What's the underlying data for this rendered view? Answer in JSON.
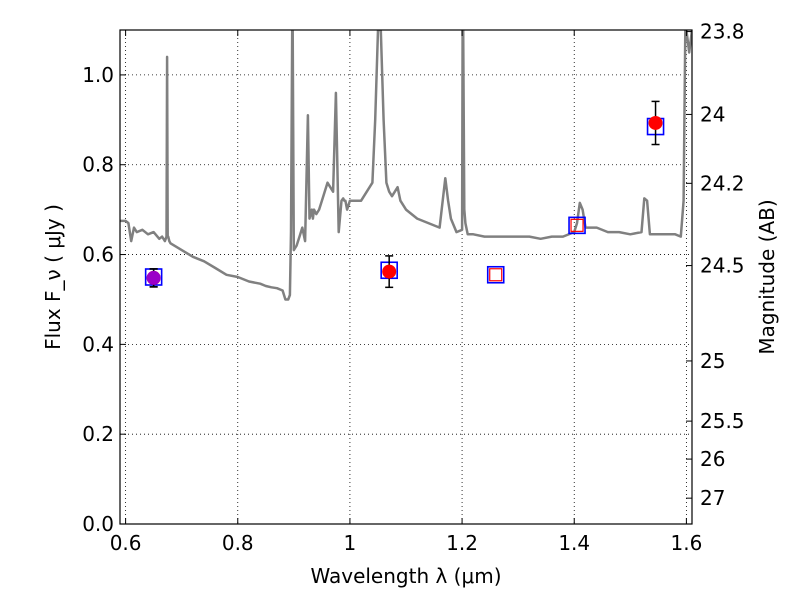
{
  "chart_data": {
    "type": "line",
    "xlabel": "Wavelength  λ (μm)",
    "ylabel": "Flux  F_ν  ( μJy )",
    "y2label": "Magnitude (AB)",
    "xlim": [
      0.59,
      1.61
    ],
    "ylim": [
      0.0,
      1.1
    ],
    "grid": true,
    "x_ticks": [
      {
        "value": 0.6,
        "label": "0.6"
      },
      {
        "value": 0.8,
        "label": "0.8"
      },
      {
        "value": 1.0,
        "label": "1"
      },
      {
        "value": 1.2,
        "label": "1.2"
      },
      {
        "value": 1.4,
        "label": "1.4"
      },
      {
        "value": 1.6,
        "label": "1.6"
      }
    ],
    "y_ticks": [
      {
        "value": 0.0,
        "label": "0.0"
      },
      {
        "value": 0.2,
        "label": "0.2"
      },
      {
        "value": 0.4,
        "label": "0.4"
      },
      {
        "value": 0.6,
        "label": "0.6"
      },
      {
        "value": 0.8,
        "label": "0.8"
      },
      {
        "value": 1.0,
        "label": "1.0"
      }
    ],
    "y2_ticks": [
      {
        "value": 23.8,
        "label": "23.8"
      },
      {
        "value": 24.0,
        "label": "24"
      },
      {
        "value": 24.2,
        "label": "24.2"
      },
      {
        "value": 24.5,
        "label": "24.5"
      },
      {
        "value": 25.0,
        "label": "25"
      },
      {
        "value": 25.5,
        "label": "25.5"
      },
      {
        "value": 26.0,
        "label": "26"
      },
      {
        "value": 27.0,
        "label": "27"
      }
    ],
    "series": [
      {
        "kind": "spectrum",
        "color": "#808080",
        "x": [
          0.59,
          0.6,
          0.605,
          0.61,
          0.615,
          0.62,
          0.63,
          0.64,
          0.65,
          0.66,
          0.665,
          0.67,
          0.673,
          0.674,
          0.675,
          0.676,
          0.678,
          0.68,
          0.7,
          0.72,
          0.74,
          0.76,
          0.78,
          0.8,
          0.82,
          0.84,
          0.85,
          0.86,
          0.87,
          0.88,
          0.885,
          0.89,
          0.893,
          0.895,
          0.897,
          0.898,
          0.9,
          0.905,
          0.91,
          0.915,
          0.92,
          0.925,
          0.928,
          0.932,
          0.934,
          0.936,
          0.94,
          0.945,
          0.95,
          0.955,
          0.96,
          0.965,
          0.97,
          0.975,
          0.98,
          0.985,
          0.988,
          0.99,
          0.992,
          0.995,
          1.0,
          1.02,
          1.04,
          1.045,
          1.05,
          1.055,
          1.06,
          1.065,
          1.07,
          1.075,
          1.08,
          1.085,
          1.09,
          1.1,
          1.12,
          1.14,
          1.16,
          1.17,
          1.175,
          1.18,
          1.19,
          1.2,
          1.201,
          1.202,
          1.204,
          1.206,
          1.21,
          1.22,
          1.24,
          1.26,
          1.28,
          1.3,
          1.32,
          1.34,
          1.36,
          1.38,
          1.4,
          1.405,
          1.41,
          1.415,
          1.42,
          1.44,
          1.46,
          1.48,
          1.5,
          1.52,
          1.525,
          1.53,
          1.535,
          1.54,
          1.56,
          1.58,
          1.59,
          1.595,
          1.598,
          1.6,
          1.605,
          1.61
        ],
        "y": [
          0.675,
          0.675,
          0.67,
          0.63,
          0.66,
          0.65,
          0.655,
          0.645,
          0.65,
          0.635,
          0.64,
          0.63,
          0.64,
          1.04,
          0.64,
          0.64,
          0.63,
          0.625,
          0.61,
          0.595,
          0.585,
          0.57,
          0.555,
          0.55,
          0.54,
          0.535,
          0.53,
          0.527,
          0.525,
          0.52,
          0.5,
          0.5,
          0.51,
          0.65,
          1.1,
          1.1,
          0.61,
          0.62,
          0.64,
          0.66,
          0.63,
          0.91,
          0.68,
          0.7,
          0.68,
          0.7,
          0.69,
          0.7,
          0.72,
          0.74,
          0.76,
          0.75,
          0.74,
          0.96,
          0.65,
          0.72,
          0.725,
          0.72,
          0.72,
          0.7,
          0.72,
          0.72,
          0.76,
          0.9,
          1.1,
          1.1,
          0.9,
          0.76,
          0.74,
          0.73,
          0.74,
          0.75,
          0.72,
          0.7,
          0.68,
          0.67,
          0.66,
          0.77,
          0.72,
          0.68,
          0.65,
          0.655,
          1.1,
          1.1,
          0.7,
          0.67,
          0.645,
          0.645,
          0.64,
          0.64,
          0.64,
          0.64,
          0.64,
          0.635,
          0.64,
          0.64,
          0.65,
          0.67,
          0.715,
          0.7,
          0.66,
          0.66,
          0.65,
          0.65,
          0.645,
          0.65,
          0.725,
          0.72,
          0.645,
          0.645,
          0.645,
          0.645,
          0.64,
          0.72,
          1.1,
          1.1,
          1.05,
          1.1
        ]
      },
      {
        "kind": "model",
        "marker": "square",
        "color": "#0000ff",
        "x": [
          0.65,
          1.07,
          1.26,
          1.405,
          1.545
        ],
        "y": [
          0.55,
          0.565,
          0.555,
          0.665,
          0.885
        ]
      },
      {
        "kind": "predicted",
        "marker": "square",
        "color": "#ff0000",
        "x": [
          1.26,
          1.405
        ],
        "y": [
          0.555,
          0.665
        ]
      },
      {
        "kind": "observed",
        "marker": "circle",
        "color": "#ff0000",
        "x": [
          0.65,
          1.07,
          1.545
        ],
        "y": [
          0.548,
          0.562,
          0.893
        ],
        "err": [
          0.02,
          0.035,
          0.048
        ]
      },
      {
        "kind": "observed-blended",
        "marker": "circle",
        "color": "#9b00c8",
        "x": [
          0.65
        ],
        "y": [
          0.548
        ],
        "err": [
          0.02
        ]
      }
    ]
  }
}
